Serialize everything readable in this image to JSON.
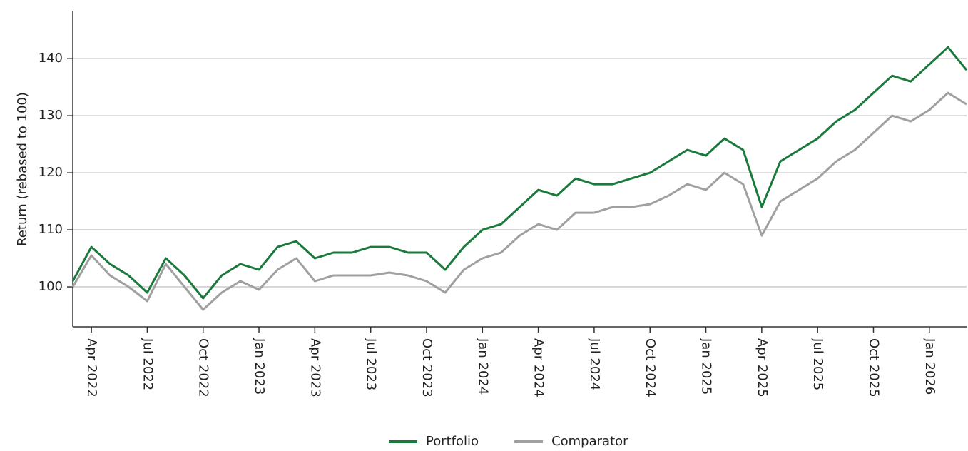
{
  "chart_data": {
    "type": "line",
    "y_label": "Return (rebased to 100)",
    "x": [
      "2022-03",
      "2022-04",
      "2022-05",
      "2022-06",
      "2022-07",
      "2022-08",
      "2022-09",
      "2022-10",
      "2022-11",
      "2022-12",
      "2023-01",
      "2023-02",
      "2023-03",
      "2023-04",
      "2023-05",
      "2023-06",
      "2023-07",
      "2023-08",
      "2023-09",
      "2023-10",
      "2023-11",
      "2023-12",
      "2024-01",
      "2024-02",
      "2024-03",
      "2024-04",
      "2024-05",
      "2024-06",
      "2024-07",
      "2024-08",
      "2024-09",
      "2024-10",
      "2024-11",
      "2024-12",
      "2025-01",
      "2025-02",
      "2025-03",
      "2025-04",
      "2025-05",
      "2025-06",
      "2025-07",
      "2025-08",
      "2025-09",
      "2025-10",
      "2025-11",
      "2025-12",
      "2026-01",
      "2026-02",
      "2026-03"
    ],
    "series": [
      {
        "name": "Portfolio",
        "color": "#1a7a3c",
        "values": [
          101,
          107,
          104,
          102,
          99,
          105,
          102,
          98,
          102,
          104,
          103,
          107,
          108,
          105,
          106,
          106,
          107,
          107,
          106,
          106,
          103,
          107,
          110,
          111,
          114,
          117,
          116,
          119,
          118,
          118,
          119,
          120,
          122,
          124,
          123,
          126,
          124,
          114,
          122,
          124,
          126,
          129,
          131,
          134,
          137,
          136,
          139,
          142,
          138
        ]
      },
      {
        "name": "Comparator",
        "color": "#a0a0a0",
        "values": [
          100,
          105.5,
          102,
          100,
          97.5,
          104,
          100,
          96,
          99,
          101,
          99.5,
          103,
          105,
          101,
          102,
          102,
          102,
          102.5,
          102,
          101,
          99,
          103,
          105,
          106,
          109,
          111,
          110,
          113,
          113,
          114,
          114,
          114.5,
          116,
          118,
          117,
          120,
          118,
          109,
          115,
          117,
          119,
          122,
          124,
          127,
          130,
          129,
          131,
          134,
          132
        ]
      }
    ],
    "xlim": [
      "2022-03",
      "2026-03"
    ],
    "xticks": [
      {
        "value": "2022-04",
        "label": "Apr 2022"
      },
      {
        "value": "2022-07",
        "label": "Jul 2022"
      },
      {
        "value": "2022-10",
        "label": "Oct 2022"
      },
      {
        "value": "2023-01",
        "label": "Jan 2023"
      },
      {
        "value": "2023-04",
        "label": "Apr 2023"
      },
      {
        "value": "2023-07",
        "label": "Jul 2023"
      },
      {
        "value": "2023-10",
        "label": "Oct 2023"
      },
      {
        "value": "2024-01",
        "label": "Jan 2024"
      },
      {
        "value": "2024-04",
        "label": "Apr 2024"
      },
      {
        "value": "2024-07",
        "label": "Jul 2024"
      },
      {
        "value": "2024-10",
        "label": "Oct 2024"
      },
      {
        "value": "2025-01",
        "label": "Jan 2025"
      },
      {
        "value": "2025-04",
        "label": "Apr 2025"
      },
      {
        "value": "2025-07",
        "label": "Jul 2025"
      },
      {
        "value": "2025-10",
        "label": "Oct 2025"
      },
      {
        "value": "2026-01",
        "label": "Jan 2026"
      }
    ],
    "ylim": [
      93,
      148.4
    ],
    "yticks": [
      100,
      110,
      120,
      130,
      140
    ],
    "grid": true,
    "legend": "bottom"
  }
}
